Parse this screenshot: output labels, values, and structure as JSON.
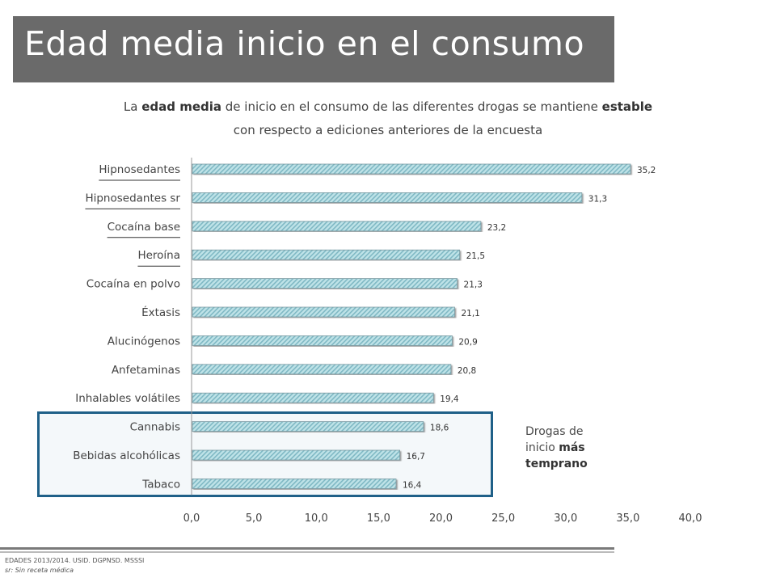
{
  "title": "Edad media inicio en el consumo",
  "subtitle": {
    "pre": "La ",
    "bold1": "edad media",
    "mid": " de inicio en el consumo de las diferentes drogas se mantiene ",
    "bold2": "estable",
    "line2": "con respecto a ediciones anteriores de la encuesta"
  },
  "note": {
    "line1": "Drogas de",
    "line2_pre": "inicio ",
    "line2_bold": "más",
    "line3_bold": "temprano"
  },
  "footer": {
    "source": "EDADES 2013/2014. USID. DGPNSD. MSSSI",
    "note": "sr: Sin receta médica"
  },
  "colors": {
    "bar_fill": "#bfe3e8",
    "bar_stripe": "#7fb8c4",
    "highlight_border": "#1f6088",
    "title_band": "#6a6a6a"
  },
  "chart_data": {
    "type": "bar",
    "orientation": "horizontal",
    "categories": [
      "Hipnosedantes",
      "Hipnosedantes sr",
      "Cocaína base",
      "Heroína",
      "Cocaína en polvo",
      "Éxtasis",
      "Alucinógenos",
      "Anfetaminas",
      "Inhalables volátiles",
      "Cannabis",
      "Bebidas alcohólicas",
      "Tabaco"
    ],
    "values": [
      35.2,
      31.3,
      23.2,
      21.5,
      21.3,
      21.1,
      20.9,
      20.8,
      19.4,
      18.6,
      16.7,
      16.4
    ],
    "value_labels": [
      "35,2",
      "31,3",
      "23,2",
      "21,5",
      "21,3",
      "21,1",
      "20,9",
      "20,8",
      "19,4",
      "18,6",
      "16,7",
      "16,4"
    ],
    "xlim": [
      0,
      40
    ],
    "x_ticks": [
      "0,0",
      "5,0",
      "10,0",
      "15,0",
      "20,0",
      "25,0",
      "30,0",
      "35,0",
      "40,0"
    ],
    "underlined_categories": [
      "Hipnosedantes",
      "Hipnosedantes sr",
      "Cocaína base",
      "Heroína"
    ],
    "highlighted_categories": [
      "Cannabis",
      "Bebidas alcohólicas",
      "Tabaco"
    ],
    "grid": false,
    "legend": "none"
  }
}
